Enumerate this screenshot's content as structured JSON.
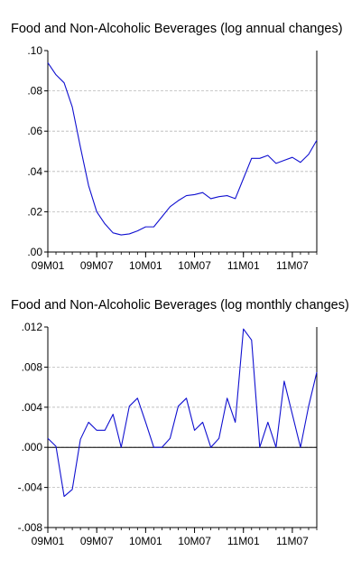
{
  "chart_data": [
    {
      "type": "line",
      "title": "Food and Non-Alcoholic Beverages (log annual changes)",
      "xlabel": "",
      "ylabel": "",
      "ylim": [
        0.0,
        0.1
      ],
      "y_ticks": [
        ".00",
        ".02",
        ".04",
        ".06",
        ".08",
        ".10"
      ],
      "y_tick_values": [
        0.0,
        0.02,
        0.04,
        0.06,
        0.08,
        0.1
      ],
      "x_tick_labels": [
        "09M01",
        "09M07",
        "10M01",
        "10M07",
        "11M01",
        "11M07"
      ],
      "x_tick_index": [
        0,
        6,
        12,
        18,
        24,
        30
      ],
      "grid": "horizontal-dashed",
      "series": [
        {
          "color": "#1010d0",
          "values": [
            0.094,
            0.088,
            0.084,
            0.072,
            0.052,
            0.033,
            0.02,
            0.014,
            0.0095,
            0.0085,
            0.009,
            0.0105,
            0.0125,
            0.0125,
            0.0175,
            0.0225,
            0.0255,
            0.028,
            0.0285,
            0.0295,
            0.0265,
            0.0275,
            0.028,
            0.0265,
            0.0365,
            0.0465,
            0.0465,
            0.048,
            0.044,
            0.0455,
            0.047,
            0.0445,
            0.0485,
            0.0555
          ]
        }
      ]
    },
    {
      "type": "line",
      "title": "Food and Non-Alcoholic Beverages (log monthly changes)",
      "xlabel": "",
      "ylabel": "",
      "ylim": [
        -0.008,
        0.012
      ],
      "y_ticks": [
        "-.008",
        "-.004",
        ".000",
        ".004",
        ".008",
        ".012"
      ],
      "y_tick_values": [
        -0.008,
        -0.004,
        0.0,
        0.004,
        0.008,
        0.012
      ],
      "x_tick_labels": [
        "09M01",
        "09M07",
        "10M01",
        "10M07",
        "11M01",
        "11M07"
      ],
      "x_tick_index": [
        0,
        6,
        12,
        18,
        24,
        30
      ],
      "grid": "horizontal-dashed",
      "series": [
        {
          "color": "#1010d0",
          "values": [
            0.0009,
            0.0001,
            -0.0049,
            -0.0042,
            0.0008,
            0.0025,
            0.0017,
            0.0017,
            0.0033,
            0.0,
            0.0041,
            0.0049,
            0.0025,
            0.0,
            0.0,
            0.0009,
            0.0041,
            0.0049,
            0.0017,
            0.0025,
            0.0,
            0.0009,
            0.0049,
            0.0025,
            0.0118,
            0.0107,
            0.0,
            0.0025,
            0.0,
            0.0066,
            0.0033,
            0.0,
            0.0041,
            0.0075
          ]
        }
      ]
    }
  ]
}
